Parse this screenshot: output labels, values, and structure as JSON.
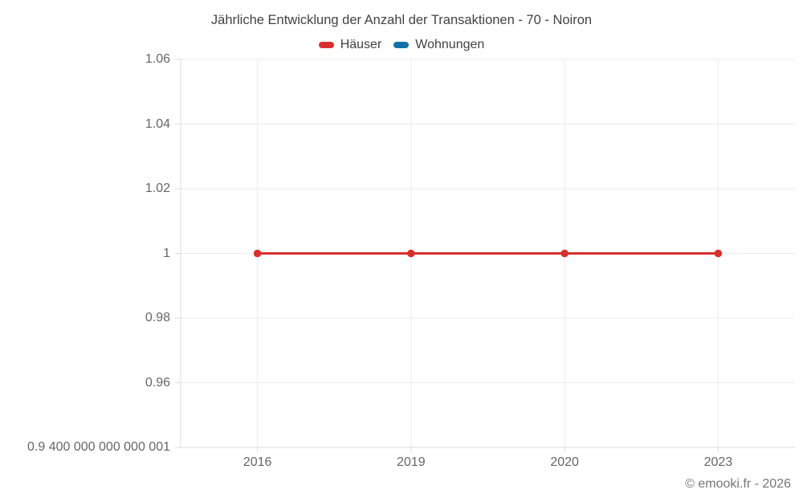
{
  "title": "Jährliche Entwicklung der Anzahl der Transaktionen - 70 - Noiron",
  "legend": [
    {
      "label": "Häuser",
      "color": "#d7302f"
    },
    {
      "label": "Wohnungen",
      "color": "#1271a8"
    }
  ],
  "footer": "© emooki.fr - 2026",
  "colors": {
    "series_red": "#d7302f",
    "series_blue": "#1271a8",
    "gridline": "#ebebeb",
    "axis_line": "#dcdcdc",
    "title_text": "#424242",
    "tick_text": "#666666",
    "footer_text": "#757575"
  },
  "chart_data": {
    "type": "line",
    "title": "Jährliche Entwicklung der Anzahl der Transaktionen - 70 - Noiron",
    "categories": [
      "2016",
      "2019",
      "2020",
      "2023"
    ],
    "series": [
      {
        "name": "Häuser",
        "color": "#d7302f",
        "values": [
          1,
          1,
          1,
          1
        ]
      },
      {
        "name": "Wohnungen",
        "color": "#1271a8",
        "values": []
      }
    ],
    "xlabel": "",
    "ylabel": "",
    "ylim": [
      0.94,
      1.06
    ],
    "yticks": [
      {
        "label": "1.06",
        "value": 1.06
      },
      {
        "label": "1.04",
        "value": 1.04
      },
      {
        "label": "1.02",
        "value": 1.02
      },
      {
        "label": "1",
        "value": 1
      },
      {
        "label": "0.98",
        "value": 0.98
      },
      {
        "label": "0.96",
        "value": 0.96
      },
      {
        "label": "0.9 400 000 000 000 001",
        "value": 0.94
      }
    ],
    "grid": true,
    "legend_position": "top",
    "marker": "circle"
  }
}
